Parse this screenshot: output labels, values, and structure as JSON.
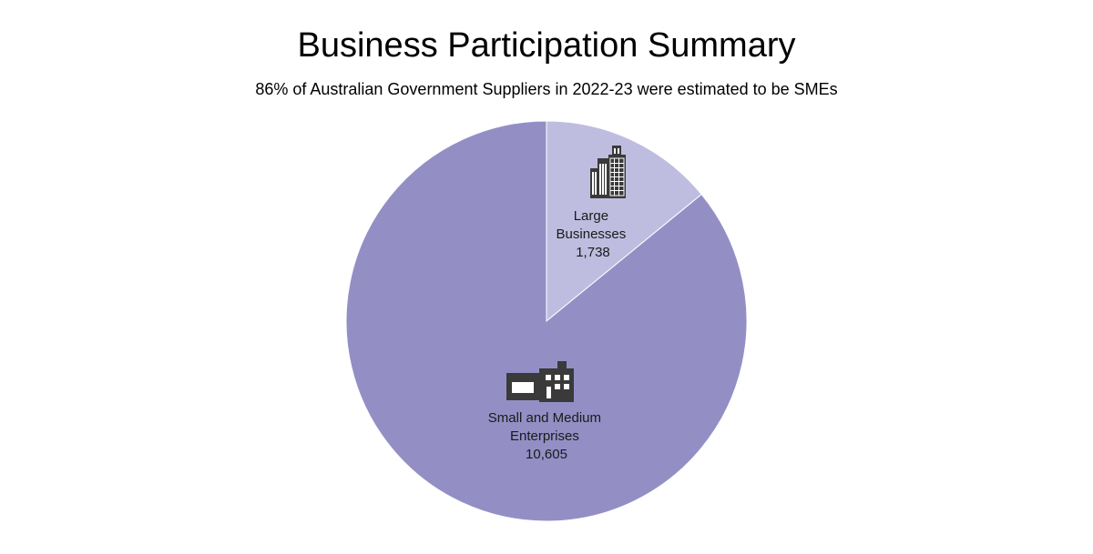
{
  "chart_data": {
    "type": "pie",
    "title": "Business Participation Summary",
    "subtitle": "86% of Australian Government Suppliers in 2022-23 were estimated to be SMEs",
    "slices": [
      {
        "label_lines": [
          "Large",
          "Businesses"
        ],
        "value": 1738,
        "value_label": "1,738",
        "color": "#bfbddf",
        "icon": "office-tower-icon"
      },
      {
        "label_lines": [
          "Small and Medium",
          "Enterprises"
        ],
        "value": 10605,
        "value_label": "10,605",
        "color": "#938fc5",
        "icon": "small-business-icon"
      }
    ],
    "legend": "none"
  }
}
